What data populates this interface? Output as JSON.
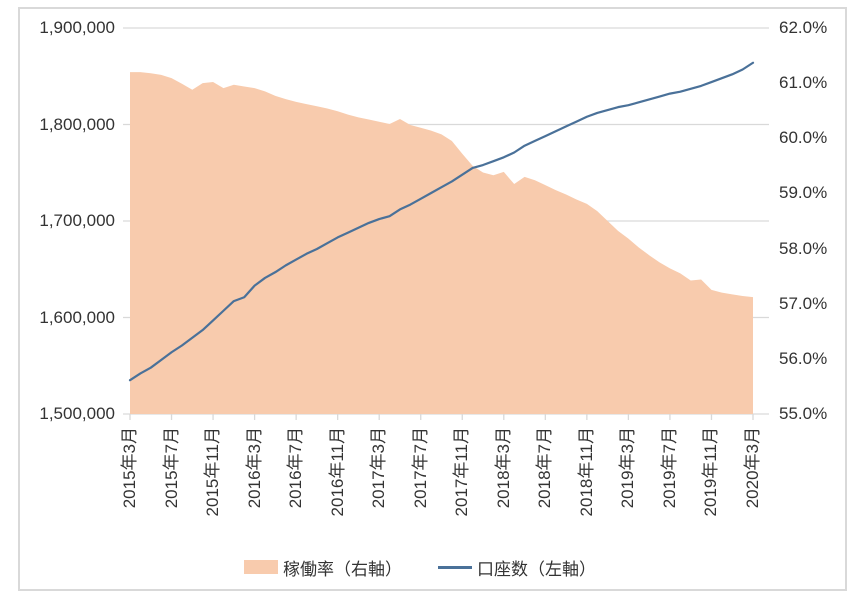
{
  "chart_data": {
    "type": "combo-area-line",
    "title": "",
    "grid": true,
    "legend_position": "bottom",
    "categories": [
      "2015年3月",
      "2015年4月",
      "2015年5月",
      "2015年6月",
      "2015年7月",
      "2015年8月",
      "2015年9月",
      "2015年10月",
      "2015年11月",
      "2015年12月",
      "2016年1月",
      "2016年2月",
      "2016年3月",
      "2016年4月",
      "2016年5月",
      "2016年6月",
      "2016年7月",
      "2016年8月",
      "2016年9月",
      "2016年10月",
      "2016年11月",
      "2016年12月",
      "2017年1月",
      "2017年2月",
      "2017年3月",
      "2017年4月",
      "2017年5月",
      "2017年6月",
      "2017年7月",
      "2017年8月",
      "2017年9月",
      "2017年10月",
      "2017年11月",
      "2017年12月",
      "2018年1月",
      "2018年2月",
      "2018年3月",
      "2018年4月",
      "2018年5月",
      "2018年6月",
      "2018年7月",
      "2018年8月",
      "2018年9月",
      "2018年10月",
      "2018年11月",
      "2018年12月",
      "2019年1月",
      "2019年2月",
      "2019年3月",
      "2019年4月",
      "2019年5月",
      "2019年6月",
      "2019年7月",
      "2019年8月",
      "2019年9月",
      "2019年10月",
      "2019年11月",
      "2019年12月",
      "2020年1月",
      "2020年2月",
      "2020年3月"
    ],
    "x_tick_labels": [
      "2015年3月",
      "2015年7月",
      "2015年11月",
      "2016年3月",
      "2016年7月",
      "2016年11月",
      "2017年3月",
      "2017年7月",
      "2017年11月",
      "2018年3月",
      "2018年7月",
      "2018年11月",
      "2019年3月",
      "2019年7月",
      "2019年11月",
      "2020年3月"
    ],
    "x_tick_every": 4,
    "left_axis": {
      "min": 1500000,
      "max": 1900000,
      "step": 100000,
      "tick_labels": [
        "1,900,000",
        "1,800,000",
        "1,700,000",
        "1,600,000",
        "1,500,000"
      ]
    },
    "right_axis": {
      "min": 55.0,
      "max": 62.0,
      "step": 1.0,
      "tick_labels": [
        "62.0%",
        "61.0%",
        "60.0%",
        "59.0%",
        "58.0%",
        "57.0%",
        "56.0%",
        "55.0%"
      ]
    },
    "series": [
      {
        "name": "稼働率（右軸）",
        "type": "area",
        "axis": "right",
        "color": "#f8cbad",
        "values": [
          61.2,
          61.2,
          61.18,
          61.15,
          61.09,
          60.99,
          60.88,
          61.0,
          61.02,
          60.91,
          60.97,
          60.94,
          60.91,
          60.85,
          60.77,
          60.71,
          60.66,
          60.62,
          60.58,
          60.54,
          60.49,
          60.43,
          60.38,
          60.34,
          60.3,
          60.26,
          60.35,
          60.24,
          60.19,
          60.14,
          60.07,
          59.95,
          59.72,
          59.5,
          59.38,
          59.33,
          59.39,
          59.17,
          59.3,
          59.24,
          59.15,
          59.06,
          58.98,
          58.89,
          58.81,
          58.68,
          58.5,
          58.32,
          58.18,
          58.02,
          57.88,
          57.75,
          57.64,
          57.55,
          57.42,
          57.44,
          57.25,
          57.2,
          57.17,
          57.14,
          57.12
        ]
      },
      {
        "name": "口座数（左軸）",
        "type": "line",
        "axis": "left",
        "color": "#4a7199",
        "values": [
          1535000,
          1542000,
          1548000,
          1556000,
          1564000,
          1571000,
          1579000,
          1587000,
          1597000,
          1607000,
          1617000,
          1621000,
          1633000,
          1641000,
          1647000,
          1654000,
          1660000,
          1666000,
          1671000,
          1677000,
          1683000,
          1688000,
          1693000,
          1698000,
          1702000,
          1705000,
          1712000,
          1717000,
          1723000,
          1729000,
          1735000,
          1741000,
          1748000,
          1755000,
          1758000,
          1762000,
          1766000,
          1771000,
          1778000,
          1783000,
          1788000,
          1793000,
          1798000,
          1803000,
          1808000,
          1812000,
          1815000,
          1818000,
          1820000,
          1823000,
          1826000,
          1829000,
          1832000,
          1834000,
          1837000,
          1840000,
          1844000,
          1848000,
          1852000,
          1857000,
          1864000
        ]
      }
    ],
    "colors": {
      "gridline": "#d9d9d9",
      "axis_text": "#333333"
    }
  }
}
